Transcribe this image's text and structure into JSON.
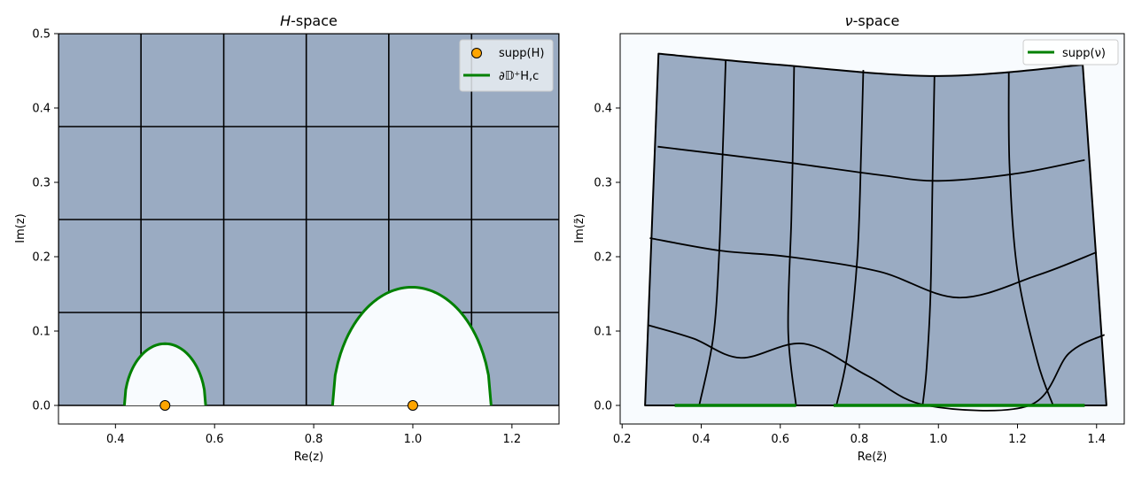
{
  "colors": {
    "fill": "#9aabc2",
    "hole": "#f8fbfe",
    "boundary": "#008000",
    "support_marker": "#ffa500",
    "grid_line": "#000000",
    "legend_bg": "#e9edf2"
  },
  "chart_data": [
    {
      "type": "scatter",
      "title": "H-space",
      "title_italic": "H",
      "title_rest": "-space",
      "xlabel": "Re(z)",
      "ylabel": "Im(z)",
      "xlim": [
        0.285,
        1.295
      ],
      "ylim": [
        -0.025,
        0.5
      ],
      "xticks": [
        "0.4",
        "0.6",
        "0.8",
        "1.0",
        "1.2"
      ],
      "xtick_values": [
        0.4,
        0.6,
        0.8,
        1.0,
        1.2
      ],
      "yticks": [
        "0.0",
        "0.1",
        "0.2",
        "0.3",
        "0.4",
        "0.5"
      ],
      "ytick_values": [
        0.0,
        0.1,
        0.2,
        0.3,
        0.4,
        0.5
      ],
      "grid_x": [
        0.285,
        0.4515,
        0.6185,
        0.785,
        0.9515,
        1.1185,
        1.295
      ],
      "grid_y": [
        0.0,
        0.125,
        0.25,
        0.375,
        0.5
      ],
      "support_points": [
        [
          0.5,
          0.0
        ],
        [
          1.0,
          0.0
        ]
      ],
      "holes": [
        {
          "center": 0.5,
          "x_min": 0.418,
          "x_max": 0.582,
          "peak": 0.083
        },
        {
          "center": 0.998,
          "x_min": 0.838,
          "x_max": 1.158,
          "peak": 0.159
        }
      ],
      "legend": {
        "position": "top-right",
        "entries": [
          {
            "kind": "marker",
            "label": "supp(H)"
          },
          {
            "kind": "line",
            "label": "∂𝔻⁺H,c"
          }
        ]
      }
    },
    {
      "type": "line",
      "title": "ν-space",
      "title_italic": "ν",
      "title_rest": "-space",
      "xlabel": "Re(z̃)",
      "ylabel": "Im(z̃)",
      "xlim": [
        0.195,
        1.47
      ],
      "ylim": [
        -0.025,
        0.5
      ],
      "xticks": [
        "0.2",
        "0.4",
        "0.6",
        "0.8",
        "1.0",
        "1.2",
        "1.4"
      ],
      "xtick_values": [
        0.2,
        0.4,
        0.6,
        0.8,
        1.0,
        1.2,
        1.4
      ],
      "yticks": [
        "0.0",
        "0.1",
        "0.2",
        "0.3",
        "0.4"
      ],
      "ytick_values": [
        0.0,
        0.1,
        0.2,
        0.3,
        0.4
      ],
      "support_intervals": [
        [
          0.333,
          0.64
        ],
        [
          0.735,
          1.37
        ]
      ],
      "region_outline": [
        [
          0.258,
          0.0
        ],
        [
          0.292,
          0.473
        ],
        [
          0.6,
          0.458
        ],
        [
          1.0,
          0.443
        ],
        [
          1.365,
          0.458
        ],
        [
          1.425,
          0.0
        ]
      ],
      "horizontal_curves": [
        [
          [
            0.29,
            0.348
          ],
          [
            0.6,
            0.328
          ],
          [
            0.85,
            0.31
          ],
          [
            1.0,
            0.302
          ],
          [
            1.2,
            0.312
          ],
          [
            1.37,
            0.33
          ]
        ],
        [
          [
            0.27,
            0.225
          ],
          [
            0.45,
            0.208
          ],
          [
            0.62,
            0.2
          ],
          [
            0.85,
            0.18
          ],
          [
            1.05,
            0.145
          ],
          [
            1.25,
            0.175
          ],
          [
            1.4,
            0.206
          ]
        ],
        [
          [
            0.265,
            0.108
          ],
          [
            0.38,
            0.09
          ],
          [
            0.5,
            0.064
          ],
          [
            0.66,
            0.083
          ],
          [
            0.82,
            0.04
          ],
          [
            0.97,
            0.0
          ],
          [
            1.23,
            0.0
          ],
          [
            1.33,
            0.07
          ],
          [
            1.42,
            0.095
          ]
        ]
      ],
      "vertical_curves": [
        [
          [
            0.462,
            0.465
          ],
          [
            0.455,
            0.35
          ],
          [
            0.445,
            0.2
          ],
          [
            0.43,
            0.09
          ],
          [
            0.395,
            0.0
          ]
        ],
        [
          [
            0.635,
            0.457
          ],
          [
            0.632,
            0.35
          ],
          [
            0.628,
            0.25
          ],
          [
            0.62,
            0.1
          ],
          [
            0.64,
            0.0
          ]
        ],
        [
          [
            0.81,
            0.451
          ],
          [
            0.805,
            0.35
          ],
          [
            0.795,
            0.2
          ],
          [
            0.77,
            0.07
          ],
          [
            0.742,
            0.0
          ]
        ],
        [
          [
            0.99,
            0.444
          ],
          [
            0.985,
            0.3
          ],
          [
            0.98,
            0.15
          ],
          [
            0.97,
            0.05
          ],
          [
            0.96,
            0.0
          ]
        ],
        [
          [
            1.178,
            0.448
          ],
          [
            1.18,
            0.32
          ],
          [
            1.2,
            0.18
          ],
          [
            1.25,
            0.06
          ],
          [
            1.29,
            0.0
          ]
        ]
      ],
      "legend": {
        "position": "top-right",
        "entries": [
          {
            "kind": "line",
            "label": "supp(ν)"
          }
        ]
      }
    }
  ]
}
